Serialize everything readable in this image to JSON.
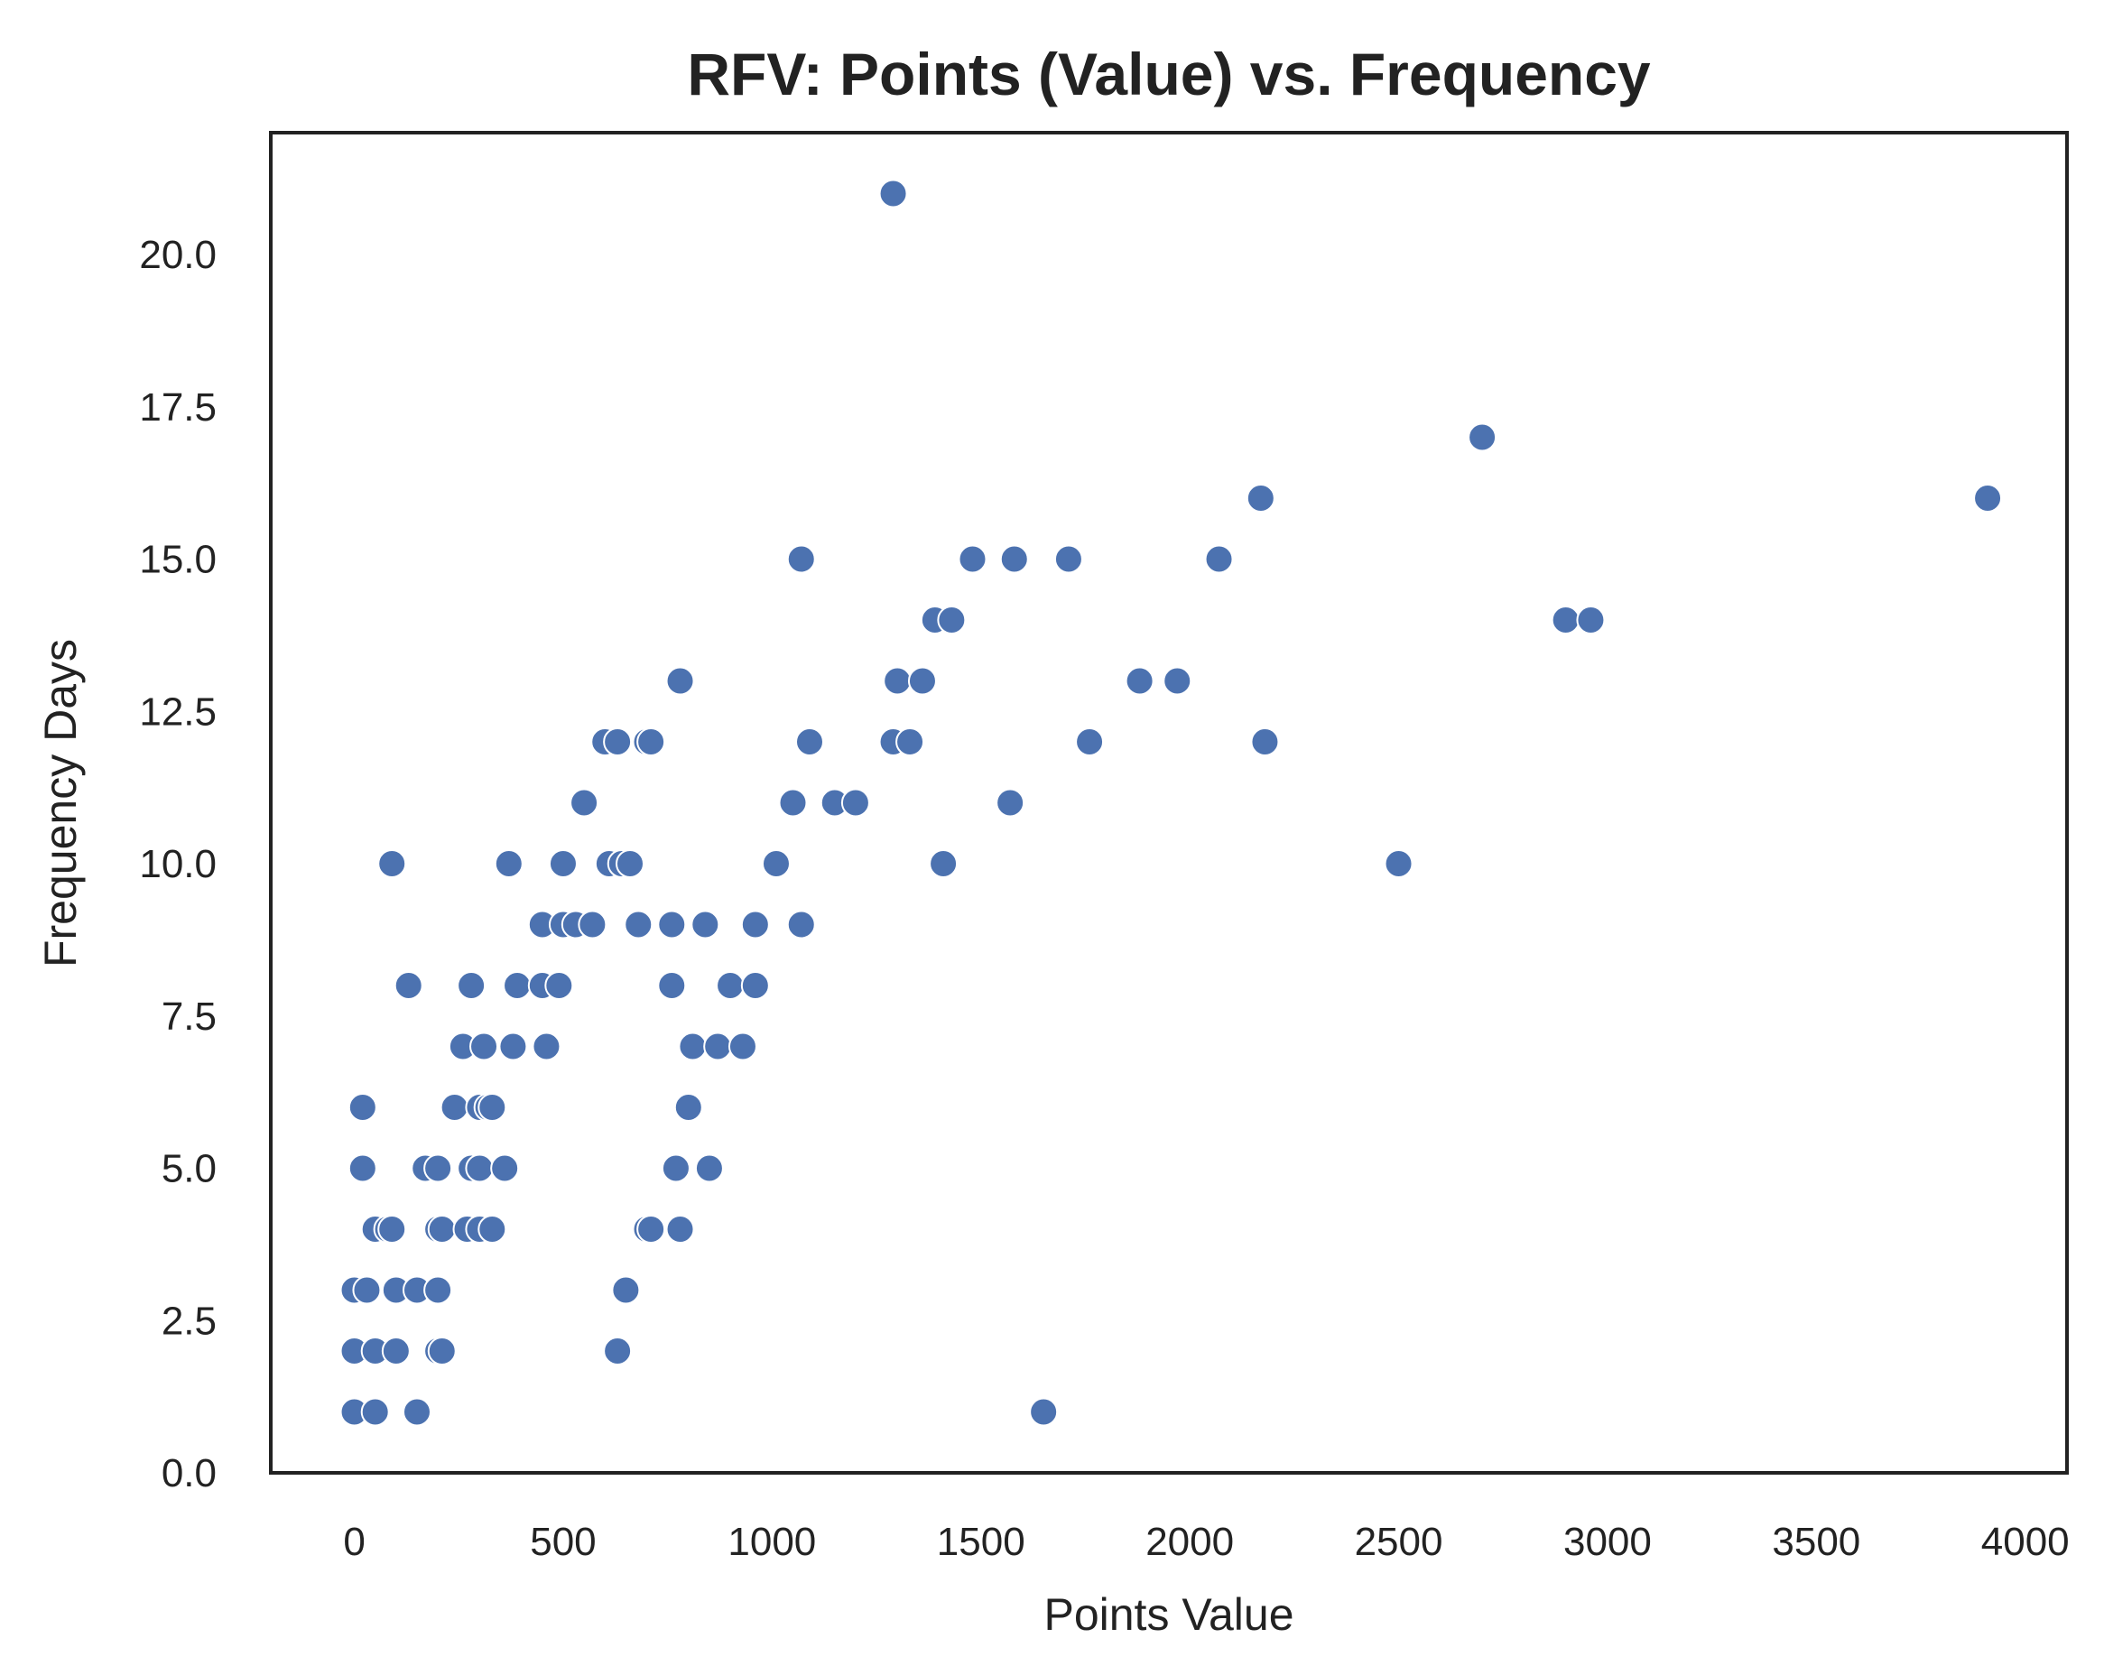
{
  "chart_data": {
    "type": "scatter",
    "title": "RFV: Points (Value) vs. Frequency",
    "xlabel": "Points Value",
    "ylabel": "Frequency Days",
    "xlim": [
      -200,
      4100
    ],
    "ylim": [
      0,
      22
    ],
    "xticks": [
      0,
      500,
      1000,
      1500,
      2000,
      2500,
      3000,
      3500,
      4000
    ],
    "xtick_labels": [
      "0",
      "500",
      "1000",
      "1500",
      "2000",
      "2500",
      "3000",
      "3500",
      "4000"
    ],
    "yticks": [
      0,
      2.5,
      5,
      7.5,
      10,
      12.5,
      15,
      17.5,
      20
    ],
    "ytick_labels": [
      "0.0",
      "2.5",
      "5.0",
      "7.5",
      "10.0",
      "12.5",
      "15.0",
      "17.5",
      "20.0"
    ],
    "grid": false,
    "legend": "none",
    "point_color": "#4c72b0",
    "series": [
      {
        "points": [
          [
            0,
            1
          ],
          [
            50,
            1
          ],
          [
            150,
            1
          ],
          [
            1650,
            1
          ],
          [
            0,
            2
          ],
          [
            50,
            2
          ],
          [
            100,
            2
          ],
          [
            200,
            2
          ],
          [
            210,
            2
          ],
          [
            630,
            2
          ],
          [
            0,
            3
          ],
          [
            30,
            3
          ],
          [
            100,
            3
          ],
          [
            150,
            3
          ],
          [
            200,
            3
          ],
          [
            650,
            3
          ],
          [
            50,
            4
          ],
          [
            80,
            4
          ],
          [
            90,
            4
          ],
          [
            200,
            4
          ],
          [
            210,
            4
          ],
          [
            270,
            4
          ],
          [
            300,
            4
          ],
          [
            330,
            4
          ],
          [
            700,
            4
          ],
          [
            710,
            4
          ],
          [
            780,
            4
          ],
          [
            20,
            5
          ],
          [
            170,
            5
          ],
          [
            200,
            5
          ],
          [
            280,
            5
          ],
          [
            300,
            5
          ],
          [
            360,
            5
          ],
          [
            770,
            5
          ],
          [
            850,
            5
          ],
          [
            20,
            6
          ],
          [
            240,
            6
          ],
          [
            300,
            6
          ],
          [
            320,
            6
          ],
          [
            330,
            6
          ],
          [
            800,
            6
          ],
          [
            260,
            7
          ],
          [
            310,
            7
          ],
          [
            380,
            7
          ],
          [
            460,
            7
          ],
          [
            810,
            7
          ],
          [
            870,
            7
          ],
          [
            930,
            7
          ],
          [
            130,
            8
          ],
          [
            280,
            8
          ],
          [
            390,
            8
          ],
          [
            450,
            8
          ],
          [
            490,
            8
          ],
          [
            760,
            8
          ],
          [
            900,
            8
          ],
          [
            960,
            8
          ],
          [
            450,
            9
          ],
          [
            500,
            9
          ],
          [
            530,
            9
          ],
          [
            570,
            9
          ],
          [
            680,
            9
          ],
          [
            760,
            9
          ],
          [
            840,
            9
          ],
          [
            960,
            9
          ],
          [
            1070,
            9
          ],
          [
            90,
            10
          ],
          [
            370,
            10
          ],
          [
            500,
            10
          ],
          [
            610,
            10
          ],
          [
            640,
            10
          ],
          [
            660,
            10
          ],
          [
            1010,
            10
          ],
          [
            1410,
            10
          ],
          [
            2500,
            10
          ],
          [
            550,
            11
          ],
          [
            1050,
            11
          ],
          [
            1150,
            11
          ],
          [
            1200,
            11
          ],
          [
            1570,
            11
          ],
          [
            600,
            12
          ],
          [
            630,
            12
          ],
          [
            700,
            12
          ],
          [
            710,
            12
          ],
          [
            1090,
            12
          ],
          [
            1290,
            12
          ],
          [
            1330,
            12
          ],
          [
            1760,
            12
          ],
          [
            2180,
            12
          ],
          [
            780,
            13
          ],
          [
            1300,
            13
          ],
          [
            1360,
            13
          ],
          [
            1880,
            13
          ],
          [
            1970,
            13
          ],
          [
            1390,
            14
          ],
          [
            1430,
            14
          ],
          [
            2900,
            14
          ],
          [
            2960,
            14
          ],
          [
            1070,
            15
          ],
          [
            1480,
            15
          ],
          [
            1580,
            15
          ],
          [
            1710,
            15
          ],
          [
            2070,
            15
          ],
          [
            2170,
            16
          ],
          [
            3910,
            16
          ],
          [
            2700,
            17
          ],
          [
            1290,
            21
          ]
        ]
      }
    ]
  }
}
